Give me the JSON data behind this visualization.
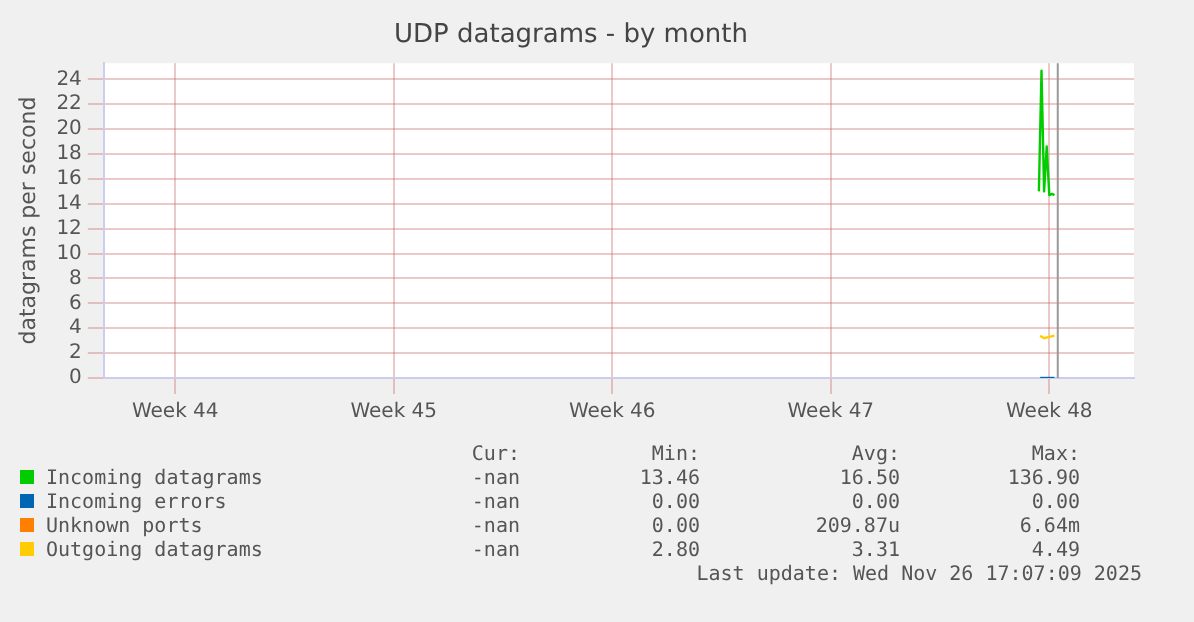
{
  "chart_data": {
    "type": "line",
    "title": "UDP datagrams - by month",
    "ylabel": "datagrams per second",
    "xlim": [
      "2025-10-24T17:07",
      "2025-11-26T17:07"
    ],
    "xticks": [
      {
        "value": "2025-10-27",
        "label": "Week 44"
      },
      {
        "value": "2025-11-03",
        "label": "Week 45"
      },
      {
        "value": "2025-11-10",
        "label": "Week 46"
      },
      {
        "value": "2025-11-17",
        "label": "Week 47"
      },
      {
        "value": "2025-11-24",
        "label": "Week 48"
      }
    ],
    "ylim": [
      0,
      25.3
    ],
    "yticks": [
      0,
      2,
      4,
      6,
      8,
      10,
      12,
      14,
      16,
      18,
      20,
      22,
      24
    ],
    "grid": true,
    "legend": "bottom",
    "marker": "none",
    "line_style": "solid",
    "series": [
      {
        "name": "Incoming datagrams",
        "color": "#00cc00",
        "x": [
          "2025-11-23T16:00",
          "2025-11-23T18:00",
          "2025-11-23T20:00",
          "2025-11-23T22:00",
          "2025-11-24T00:00",
          "2025-11-24T02:00",
          "2025-11-24T04:00"
        ],
        "values": [
          15.0,
          24.7,
          15.0,
          18.6,
          14.7,
          14.8,
          14.7
        ]
      },
      {
        "name": "Incoming errors",
        "color": "#0066b3",
        "x": [
          "2025-11-23T17:00",
          "2025-11-24T04:00"
        ],
        "values": [
          0,
          0
        ]
      },
      {
        "name": "Unknown ports",
        "color": "#ff8000"
      },
      {
        "name": "Outgoing datagrams",
        "color": "#ffcc00",
        "x": [
          "2025-11-23T17:00",
          "2025-11-23T20:00",
          "2025-11-24T00:00",
          "2025-11-24T04:00"
        ],
        "values": [
          3.4,
          3.2,
          3.3,
          3.4
        ]
      }
    ],
    "ref_lines": [
      {
        "axis": "x",
        "value": "2025-11-24T06:30",
        "color": "#999999"
      }
    ],
    "annotations": [
      "Cur:",
      "Min:",
      "Avg:",
      "Max:",
      "-nan",
      "13.46",
      "16.50",
      "136.90",
      "-nan",
      "0.00",
      "0.00",
      "0.00",
      "-nan",
      "0.00",
      "209.87u",
      "6.64m",
      "-nan",
      "2.80",
      "3.31",
      "4.49",
      "Last update: Wed Nov 26 17:07:09 2025"
    ]
  }
}
